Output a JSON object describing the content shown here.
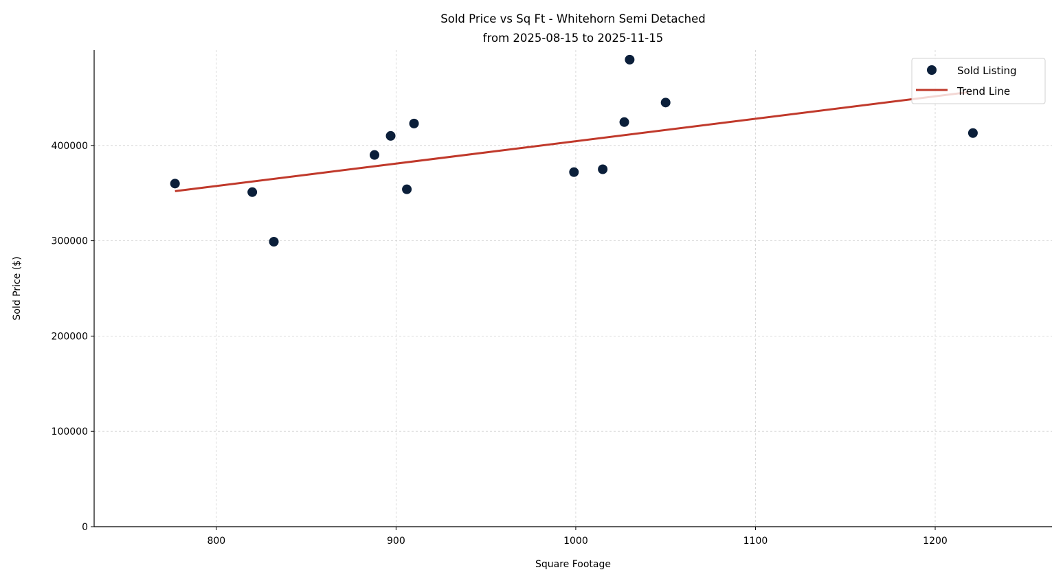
{
  "chart_data": {
    "type": "scatter",
    "title": "Sold Price vs Sq Ft - Whitehorn Semi Detached",
    "subtitle": "from 2025-08-15 to 2025-11-15",
    "xlabel": "Square Footage",
    "ylabel": "Sold Price ($)",
    "xlim": [
      732,
      1265
    ],
    "ylim": [
      0,
      500000
    ],
    "xticks": [
      800,
      900,
      1000,
      1100,
      1200
    ],
    "yticks": [
      0,
      100000,
      200000,
      300000,
      400000
    ],
    "grid": true,
    "legend_placement": "upper-right",
    "colors": {
      "points": "#0b1f3a",
      "trend": "#c0392b"
    },
    "series": [
      {
        "name": "Sold Listing",
        "type": "scatter",
        "points": [
          {
            "x": 777,
            "y": 360000
          },
          {
            "x": 820,
            "y": 351000
          },
          {
            "x": 832,
            "y": 299000
          },
          {
            "x": 888,
            "y": 390000
          },
          {
            "x": 897,
            "y": 410000
          },
          {
            "x": 906,
            "y": 354000
          },
          {
            "x": 910,
            "y": 423000
          },
          {
            "x": 999,
            "y": 372000
          },
          {
            "x": 1015,
            "y": 375000
          },
          {
            "x": 1027,
            "y": 424500
          },
          {
            "x": 1030,
            "y": 490000
          },
          {
            "x": 1050,
            "y": 445000
          },
          {
            "x": 1221,
            "y": 413000
          }
        ]
      },
      {
        "name": "Trend Line",
        "type": "line",
        "points": [
          {
            "x": 777,
            "y": 352000
          },
          {
            "x": 1219,
            "y": 456000
          }
        ]
      }
    ]
  }
}
